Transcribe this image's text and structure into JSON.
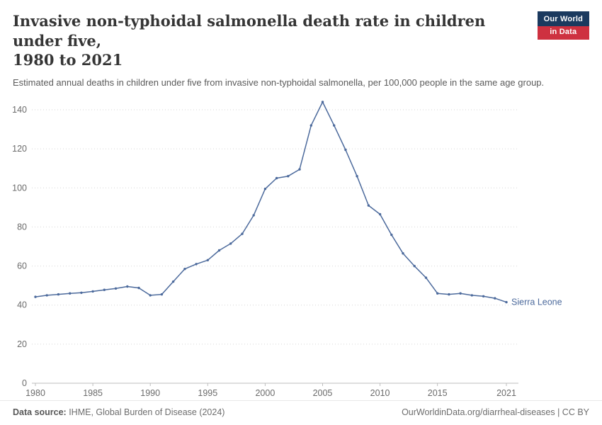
{
  "header": {
    "title_line1": "Invasive non-typhoidal salmonella death rate in children under five,",
    "title_line2": "1980 to 2021",
    "subtitle": "Estimated annual deaths in children under five from invasive non-typhoidal salmonella, per 100,000 people in the same age group.",
    "logo": {
      "line1": "Our World",
      "line2": "in Data",
      "navy": "#1B3A5F",
      "red": "#CE3140"
    }
  },
  "chart_data": {
    "type": "line",
    "title": "Invasive non-typhoidal salmonella death rate in children under five, 1980 to 2021",
    "xlabel": "",
    "ylabel": "",
    "xlim": [
      1980,
      2021
    ],
    "ylim": [
      0,
      140
    ],
    "x_ticks": [
      1980,
      1985,
      1990,
      1995,
      2000,
      2005,
      2010,
      2015,
      2021
    ],
    "y_ticks": [
      0,
      20,
      40,
      60,
      80,
      100,
      120,
      140
    ],
    "grid": "dotted-horizontal",
    "legend_position": "end-of-line",
    "series": [
      {
        "name": "Sierra Leone",
        "color": "#4C6A9C",
        "x": [
          1980,
          1981,
          1982,
          1983,
          1984,
          1985,
          1986,
          1987,
          1988,
          1989,
          1990,
          1991,
          1992,
          1993,
          1994,
          1995,
          1996,
          1997,
          1998,
          1999,
          2000,
          2001,
          2002,
          2003,
          2004,
          2005,
          2006,
          2007,
          2008,
          2009,
          2010,
          2011,
          2012,
          2013,
          2014,
          2015,
          2016,
          2017,
          2018,
          2019,
          2020,
          2021
        ],
        "values": [
          44.2,
          45,
          45.5,
          46,
          46.3,
          47,
          47.8,
          48.5,
          49.5,
          48.8,
          45,
          45.5,
          52,
          58.5,
          61,
          63,
          68,
          71.5,
          76.5,
          86,
          99.5,
          105,
          106,
          109.5,
          132,
          144,
          132,
          119.5,
          106,
          91,
          86.5,
          76,
          66.5,
          60,
          54,
          46,
          45.5,
          46,
          45,
          44.5,
          43.5,
          41.5
        ]
      }
    ]
  },
  "footer": {
    "source_label": "Data source:",
    "source_text": " IHME, Global Burden of Disease (2024)",
    "right_text": "OurWorldinData.org/diarrheal-diseases | CC BY"
  }
}
